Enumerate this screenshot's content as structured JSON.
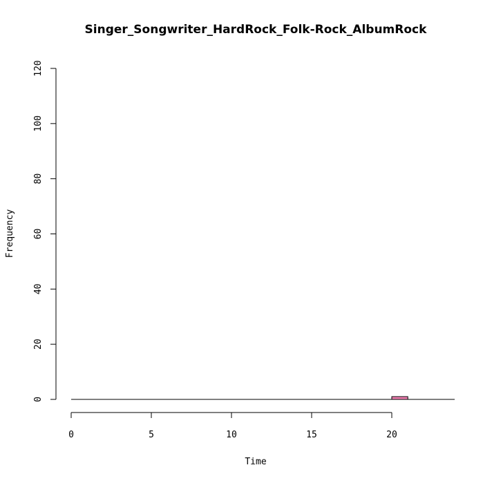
{
  "chart_data": {
    "type": "bar",
    "title": "Singer_Songwriter_HardRock_Folk-Rock_AlbumRock",
    "xlabel": "Time",
    "ylabel": "Frequency",
    "xlim": [
      0,
      24
    ],
    "ylim": [
      0,
      120
    ],
    "x_ticks": [
      "0",
      "5",
      "10",
      "15",
      "20"
    ],
    "y_ticks": [
      "0",
      "20",
      "40",
      "60",
      "80",
      "100",
      "120"
    ],
    "bins": [
      {
        "x0": 20,
        "x1": 21,
        "value": 1
      }
    ],
    "bar_color": "#f27fb2",
    "grid": false,
    "legend": "none"
  }
}
